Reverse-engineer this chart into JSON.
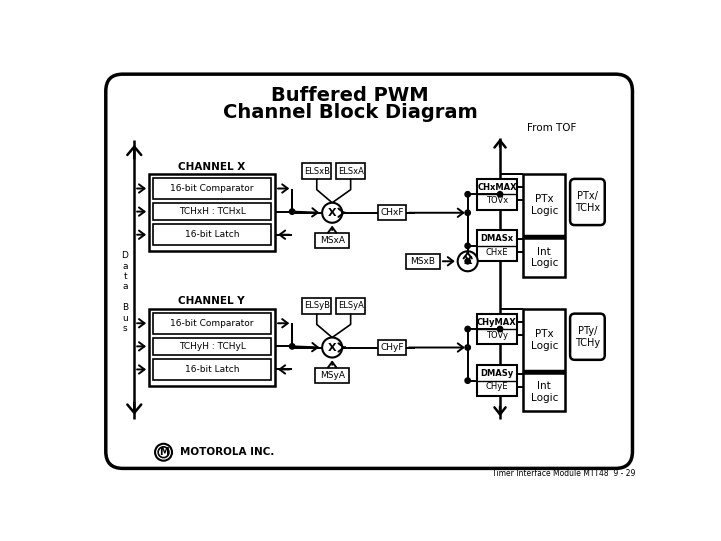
{
  "title_line1": "Buffered PWM",
  "title_line2": "Channel Block Diagram",
  "from_tof": "From TOF",
  "channel_x_label": "CHANNEL X",
  "channel_y_label": "CHANNEL Y",
  "data_bus_label": "D\na\nt\na\n\nB\nu\ns",
  "comparator_x": "16-bit Comparator",
  "register_x": "TCHxH : TCHxL",
  "latch_x": "16-bit Latch",
  "comparator_y": "16-bit Comparator",
  "register_y": "TCHyH : TCHyL",
  "latch_y": "16-bit Latch",
  "elsx_b": "ELSxB",
  "elsx_a": "ELSxA",
  "elsy_b": "ELSyB",
  "elsy_a": "ELSyA",
  "msx_a": "MSxA",
  "msx_b": "MSxB",
  "msy_a": "MSyA",
  "chx_f": "CHxF",
  "chy_f": "CHyF",
  "chx_max": "CHxMAX",
  "tov_x": "TOVx",
  "chx_e": "CHxE",
  "dmas_x": "DMASx",
  "chy_max": "CHyMAX",
  "tov_y": "TOVy",
  "chy_e": "CHyE",
  "dmas_y": "DMASy",
  "ptx_logic": "PTx\nLogic",
  "pty_logic": "PTx\nLogic",
  "int_logic_x": "Int\nLogic",
  "int_logic_y": "Int\nLogic",
  "ptx_tch": "PTx/\nTCHx",
  "pty_tch": "PTy/\nTCHy",
  "motorola": "MOTOROLA INC.",
  "footer": "Timer Interface Module MTT48  9 - 29"
}
